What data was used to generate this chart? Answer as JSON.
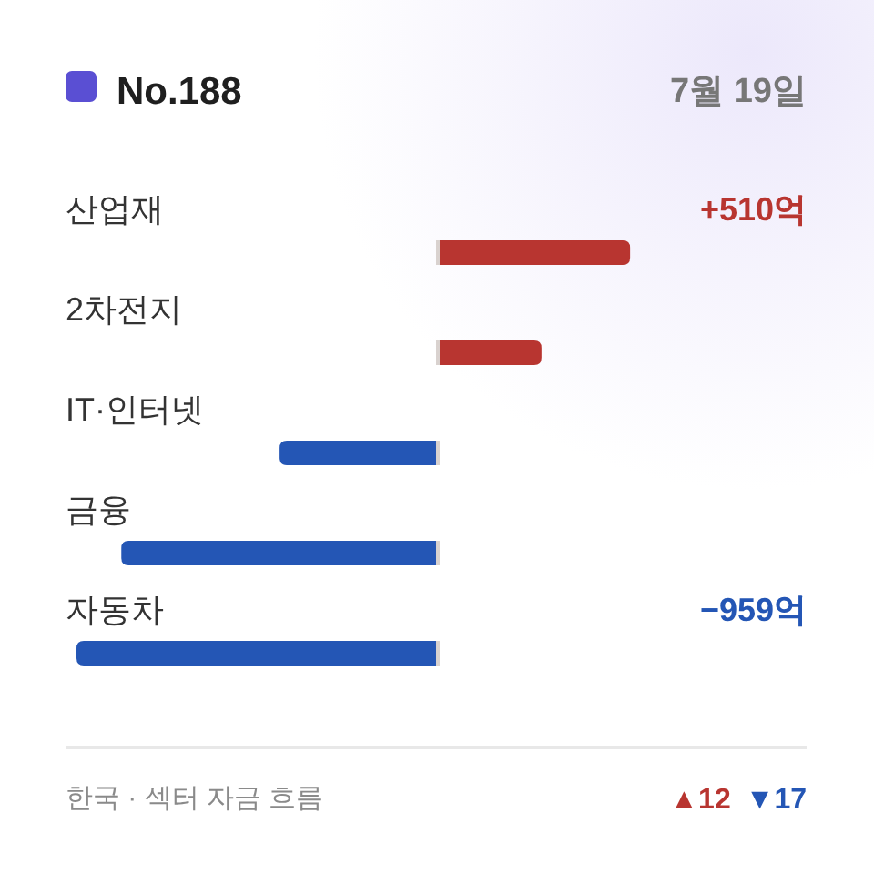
{
  "chart_data": {
    "type": "bar",
    "orientation": "horizontal",
    "title": "No.188",
    "subtitle": "7월 19일",
    "categories": [
      "산업재",
      "2차전지",
      "IT·인터넷",
      "금융",
      "자동차"
    ],
    "values": [
      510,
      275,
      -420,
      -840,
      -959
    ],
    "colors": [
      "#b83530",
      "#b83530",
      "#2456b5",
      "#2456b5",
      "#2456b5"
    ],
    "value_labels": [
      "+510억",
      null,
      null,
      null,
      "−959억"
    ],
    "annotations": [
      "한국 · 섹터 자금 흐름",
      "▲12",
      "▼17"
    ]
  }
}
